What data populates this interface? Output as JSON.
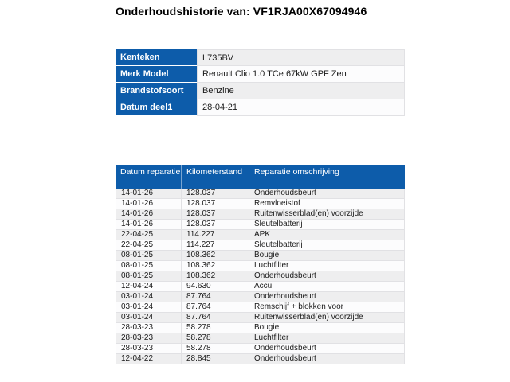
{
  "page": {
    "title": "Onderhoudshistorie van: VF1RJA00X67094946"
  },
  "vehicle_info": {
    "rows": [
      {
        "label": "Kenteken",
        "value": "L735BV"
      },
      {
        "label": "Merk Model",
        "value": "Renault Clio 1.0 TCe 67kW GPF Zen"
      },
      {
        "label": "Brandstofsoort",
        "value": "Benzine"
      },
      {
        "label": "Datum deel1",
        "value": "28-04-21"
      }
    ]
  },
  "history_table": {
    "columns": [
      "Datum reparatie",
      "Kilometerstand",
      "Reparatie omschrijving"
    ],
    "rows": [
      [
        "14-01-26",
        "128.037",
        "Onderhoudsbeurt"
      ],
      [
        "14-01-26",
        "128.037",
        "Remvloeistof"
      ],
      [
        "14-01-26",
        "128.037",
        "Ruitenwisserblad(en) voorzijde"
      ],
      [
        "14-01-26",
        "128.037",
        "Sleutelbatterij"
      ],
      [
        "22-04-25",
        "114.227",
        "APK"
      ],
      [
        "22-04-25",
        "114.227",
        "Sleutelbatterij"
      ],
      [
        "08-01-25",
        "108.362",
        "Bougie"
      ],
      [
        "08-01-25",
        "108.362",
        "Luchtfilter"
      ],
      [
        "08-01-25",
        "108.362",
        "Onderhoudsbeurt"
      ],
      [
        "12-04-24",
        "94.630",
        "Accu"
      ],
      [
        "03-01-24",
        "87.764",
        "Onderhoudsbeurt"
      ],
      [
        "03-01-24",
        "87.764",
        "Remschijf + blokken voor"
      ],
      [
        "03-01-24",
        "87.764",
        "Ruitenwisserblad(en) voorzijde"
      ],
      [
        "28-03-23",
        "58.278",
        "Bougie"
      ],
      [
        "28-03-23",
        "58.278",
        "Luchtfilter"
      ],
      [
        "28-03-23",
        "58.278",
        "Onderhoudsbeurt"
      ],
      [
        "12-04-22",
        "28.845",
        "Onderhoudsbeurt"
      ]
    ]
  },
  "colors": {
    "header_blue": "#0d5caa",
    "row_odd": "#eeeeef",
    "row_even": "#fcfcfd",
    "border": "#e1e1e4",
    "text": "#1b1b1b"
  }
}
